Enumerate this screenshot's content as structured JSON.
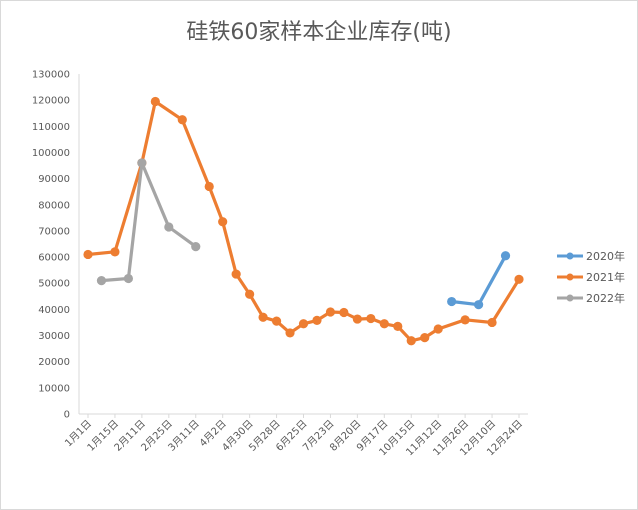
{
  "chart_data": {
    "type": "line",
    "title": "硅铁60家样本企业库存(吨)",
    "ylim": [
      0,
      130000
    ],
    "y_ticks": [
      0,
      10000,
      20000,
      30000,
      40000,
      50000,
      60000,
      70000,
      80000,
      90000,
      100000,
      110000,
      120000,
      130000
    ],
    "x_labels": [
      "1月1日",
      "1月15日",
      "2月11日",
      "2月25日",
      "3月11日",
      "4月2日",
      "4月30日",
      "5月28日",
      "6月25日",
      "7月23日",
      "8月20日",
      "9月17日",
      "10月15日",
      "11月12日",
      "11月26日",
      "12月10日",
      "12月24日"
    ],
    "grid": false,
    "legend_position": "right",
    "series": [
      {
        "name": "2020年",
        "color": "#5b9bd5",
        "points": [
          [
            27.0,
            43000
          ],
          [
            29.0,
            41800
          ],
          [
            31.0,
            60500
          ]
        ]
      },
      {
        "name": "2021年",
        "color": "#ed7d31",
        "points": [
          [
            0.0,
            61000
          ],
          [
            2.0,
            62000
          ],
          [
            4.0,
            96000
          ],
          [
            5.0,
            119500
          ],
          [
            7.0,
            112500
          ],
          [
            9.0,
            87000
          ],
          [
            10.0,
            73500
          ],
          [
            11.0,
            53500
          ],
          [
            12.0,
            45800
          ],
          [
            13.0,
            37000
          ],
          [
            14.0,
            35500
          ],
          [
            15.0,
            31000
          ],
          [
            16.0,
            34500
          ],
          [
            17.0,
            35800
          ],
          [
            18.0,
            39000
          ],
          [
            19.0,
            38800
          ],
          [
            20.0,
            36300
          ],
          [
            21.0,
            36500
          ],
          [
            22.0,
            34500
          ],
          [
            23.0,
            33500
          ],
          [
            24.0,
            28000
          ],
          [
            25.0,
            29200
          ],
          [
            26.0,
            32500
          ],
          [
            28.0,
            36000
          ],
          [
            30.0,
            35000
          ],
          [
            32.0,
            51500
          ]
        ]
      },
      {
        "name": "2022年",
        "color": "#a5a5a5",
        "points": [
          [
            1.0,
            51000
          ],
          [
            3.0,
            51800
          ],
          [
            4.0,
            96000
          ],
          [
            6.0,
            71500
          ],
          [
            8.0,
            64000
          ]
        ]
      }
    ]
  }
}
